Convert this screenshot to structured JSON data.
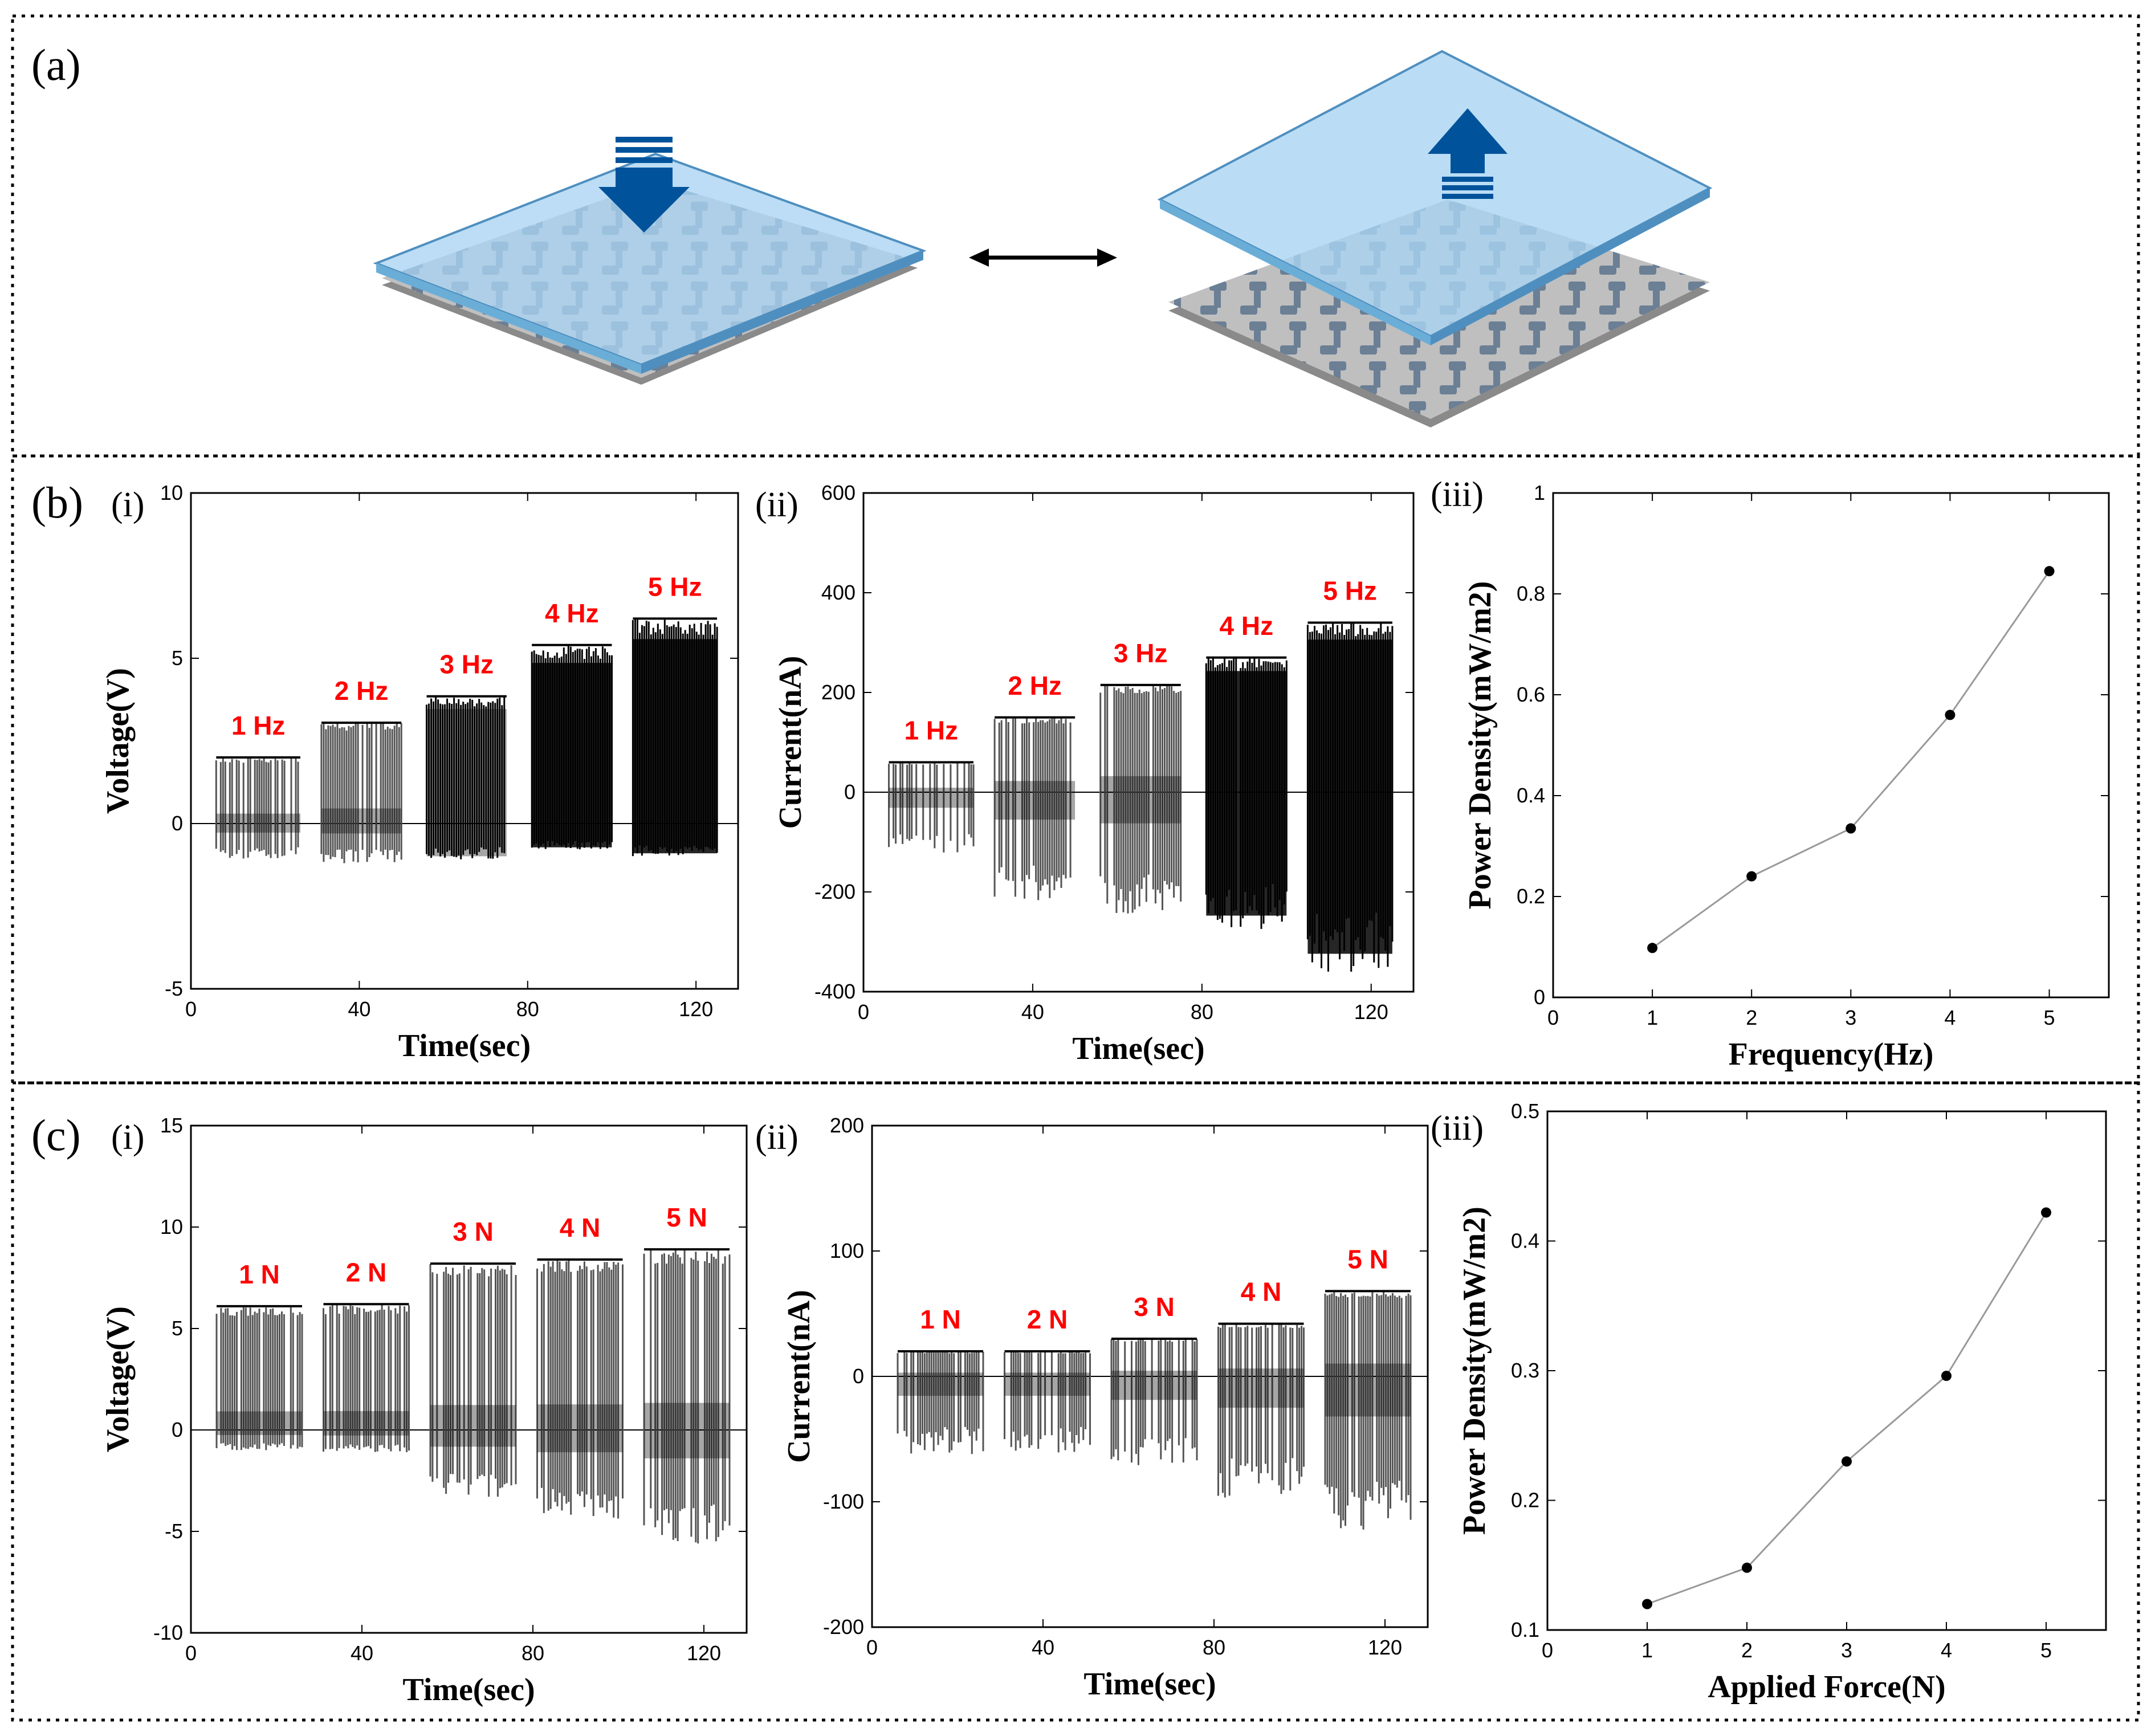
{
  "panels": {
    "a": "(a)",
    "b": "(b)",
    "c": "(c)",
    "i": "(i)",
    "ii": "(ii)",
    "iii": "(iii)"
  },
  "colors": {
    "trace": "#000000",
    "annotation": "#ff0000",
    "line": "#999999",
    "glass": "#a9d4f2",
    "arrow": "#00539b"
  },
  "chart_data": [
    {
      "id": "b-i",
      "type": "line",
      "title": "",
      "xlabel": "Time(sec)",
      "ylabel": "Voltage(V)",
      "xlim": [
        0,
        130
      ],
      "ylim": [
        -5,
        10
      ],
      "xticks": [
        0,
        40,
        80,
        120
      ],
      "yticks": [
        -5,
        0,
        5,
        10
      ],
      "bursts": [
        {
          "label": "1 Hz",
          "x0": 6,
          "x1": 26,
          "high": 2.0,
          "low": -1.1,
          "density": 0.45
        },
        {
          "label": "2 Hz",
          "x0": 31,
          "x1": 50,
          "high": 3.05,
          "low": -1.2,
          "density": 0.7
        },
        {
          "label": "3 Hz",
          "x0": 56,
          "x1": 75,
          "high": 3.85,
          "low": -1.1,
          "density": 0.9
        },
        {
          "label": "4 Hz",
          "x0": 81,
          "x1": 100,
          "high": 5.4,
          "low": -0.8,
          "density": 0.97
        },
        {
          "label": "5 Hz",
          "x0": 105,
          "x1": 125,
          "high": 6.2,
          "low": -1.0,
          "density": 1.0
        }
      ]
    },
    {
      "id": "b-ii",
      "type": "line",
      "title": "",
      "xlabel": "Time(sec)",
      "ylabel": "Current(nA)",
      "xlim": [
        0,
        130
      ],
      "ylim": [
        -400,
        600
      ],
      "xticks": [
        0,
        40,
        80,
        120
      ],
      "yticks": [
        -400,
        -200,
        0,
        200,
        400,
        600
      ],
      "bursts": [
        {
          "label": "1 Hz",
          "x0": 6,
          "x1": 26,
          "high": 60,
          "low": -125,
          "density": 0.45
        },
        {
          "label": "2 Hz",
          "x0": 31,
          "x1": 50,
          "high": 150,
          "low": -220,
          "density": 0.7
        },
        {
          "label": "3 Hz",
          "x0": 56,
          "x1": 75,
          "high": 215,
          "low": -250,
          "density": 0.85
        },
        {
          "label": "4 Hz",
          "x0": 81,
          "x1": 100,
          "high": 270,
          "low": -275,
          "density": 0.95
        },
        {
          "label": "5 Hz",
          "x0": 105,
          "x1": 125,
          "high": 340,
          "low": -360,
          "density": 1.0
        }
      ]
    },
    {
      "id": "b-iii",
      "type": "line",
      "title": "",
      "xlabel": "Frequency(Hz)",
      "ylabel": "Power Density(mW/m2)",
      "xlim": [
        0,
        5.6
      ],
      "ylim": [
        0,
        1
      ],
      "xticks": [
        0,
        1,
        2,
        3,
        4,
        5
      ],
      "yticks": [
        0,
        0.2,
        0.4,
        0.6,
        0.8,
        1
      ],
      "x": [
        1,
        2,
        3,
        4,
        5
      ],
      "y": [
        0.098,
        0.24,
        0.335,
        0.56,
        0.845
      ]
    },
    {
      "id": "c-i",
      "type": "line",
      "title": "",
      "xlabel": "Time(sec)",
      "ylabel": "Voltage(V)",
      "xlim": [
        0,
        130
      ],
      "ylim": [
        -10,
        15
      ],
      "xticks": [
        0,
        40,
        80,
        120
      ],
      "yticks": [
        -10,
        -5,
        0,
        5,
        10,
        15
      ],
      "bursts": [
        {
          "label": "1 N",
          "x0": 6,
          "x1": 26,
          "high": 6.1,
          "low": -1.0,
          "density": 0.55
        },
        {
          "label": "2 N",
          "x0": 31,
          "x1": 51,
          "high": 6.2,
          "low": -1.1,
          "density": 0.55
        },
        {
          "label": "3 N",
          "x0": 56,
          "x1": 76,
          "high": 8.2,
          "low": -3.3,
          "density": 0.6
        },
        {
          "label": "4 N",
          "x0": 81,
          "x1": 101,
          "high": 8.4,
          "low": -4.4,
          "density": 0.65
        },
        {
          "label": "5 N",
          "x0": 106,
          "x1": 126,
          "high": 8.9,
          "low": -5.6,
          "density": 0.7
        }
      ]
    },
    {
      "id": "c-ii",
      "type": "line",
      "title": "",
      "xlabel": "Time(sec)",
      "ylabel": "Current(nA)",
      "xlim": [
        0,
        130
      ],
      "ylim": [
        -200,
        200
      ],
      "xticks": [
        0,
        40,
        80,
        120
      ],
      "yticks": [
        -200,
        -100,
        0,
        100,
        200
      ],
      "bursts": [
        {
          "label": "1 N",
          "x0": 6,
          "x1": 26,
          "high": 20,
          "low": -62,
          "density": 0.55
        },
        {
          "label": "2 N",
          "x0": 31,
          "x1": 51,
          "high": 20,
          "low": -62,
          "density": 0.55
        },
        {
          "label": "3 N",
          "x0": 56,
          "x1": 76,
          "high": 30,
          "low": -75,
          "density": 0.6
        },
        {
          "label": "4 N",
          "x0": 81,
          "x1": 101,
          "high": 42,
          "low": -100,
          "density": 0.62
        },
        {
          "label": "5 N",
          "x0": 106,
          "x1": 126,
          "high": 68,
          "low": -128,
          "density": 0.68
        }
      ]
    },
    {
      "id": "c-iii",
      "type": "line",
      "title": "",
      "xlabel": "Applied Force(N)",
      "ylabel": "Power Density(mW/m2)",
      "xlim": [
        0,
        5.6
      ],
      "ylim": [
        0.1,
        0.5
      ],
      "xticks": [
        0,
        1,
        2,
        3,
        4,
        5
      ],
      "yticks": [
        0.1,
        0.2,
        0.3,
        0.4,
        0.5
      ],
      "x": [
        1,
        2,
        3,
        4,
        5
      ],
      "y": [
        0.12,
        0.148,
        0.23,
        0.296,
        0.422
      ]
    }
  ]
}
